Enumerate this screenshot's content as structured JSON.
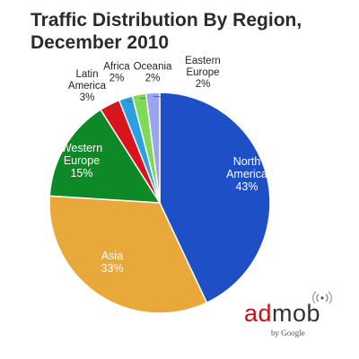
{
  "chart_data": {
    "type": "pie",
    "title": "Traffic Distribution By Region,",
    "subtitle": "December 2010",
    "slices": [
      {
        "label_lines": [
          "North",
          "America"
        ],
        "value": 43,
        "value_label": "43%",
        "color": "#1f4fc6",
        "label_color": "#ffffff",
        "label_pos": "inside"
      },
      {
        "label_lines": [
          "Asia"
        ],
        "value": 33,
        "value_label": "33%",
        "color": "#e9a83a",
        "label_color": "#ffffff",
        "label_pos": "inside"
      },
      {
        "label_lines": [
          "Western",
          "Europe"
        ],
        "value": 15,
        "value_label": "15%",
        "color": "#0d8a27",
        "label_color": "#ffffff",
        "label_pos": "inside"
      },
      {
        "label_lines": [
          "Latin",
          "America"
        ],
        "value": 3,
        "value_label": "3%",
        "color": "#d8151d",
        "label_color": "#222222",
        "label_pos": "outside"
      },
      {
        "label_lines": [
          "Africa"
        ],
        "value": 2,
        "value_label": "2%",
        "color": "#2aa0e0",
        "label_color": "#222222",
        "label_pos": "outside"
      },
      {
        "label_lines": [
          "Oceania"
        ],
        "value": 2,
        "value_label": "2%",
        "color": "#7ed957",
        "label_color": "#222222",
        "label_pos": "outside"
      },
      {
        "label_lines": [
          "Eastern",
          "Europe"
        ],
        "value": 2,
        "value_label": "2%",
        "color": "#9aa4f0",
        "label_color": "#222222",
        "label_pos": "outside"
      }
    ],
    "start_angle": "12 o'clock",
    "direction": "clockwise"
  },
  "logo": {
    "ad": "ad",
    "mob": "mob",
    "byline": "by Google"
  },
  "colors": {
    "title": "#2b2b2b",
    "outline": "#ffffff"
  }
}
